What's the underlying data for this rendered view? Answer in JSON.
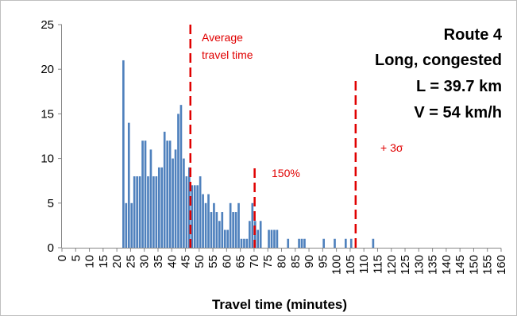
{
  "chart_data": {
    "type": "bar",
    "title": "",
    "xlabel": "Travel time (minutes)",
    "ylabel": "",
    "xlim": [
      0,
      160
    ],
    "ylim": [
      0,
      25
    ],
    "x_ticks": [
      0,
      5,
      10,
      15,
      20,
      25,
      30,
      35,
      40,
      45,
      50,
      55,
      60,
      65,
      70,
      75,
      80,
      85,
      90,
      95,
      100,
      105,
      110,
      115,
      120,
      125,
      130,
      135,
      140,
      145,
      150,
      155,
      160
    ],
    "y_ticks": [
      0,
      5,
      10,
      15,
      20,
      25
    ],
    "grid": false,
    "bar_color": "#4f81bd",
    "bin_width_minutes": 1,
    "bins": [
      {
        "x": 22,
        "y": 21
      },
      {
        "x": 23,
        "y": 5
      },
      {
        "x": 24,
        "y": 14
      },
      {
        "x": 25,
        "y": 5
      },
      {
        "x": 26,
        "y": 8
      },
      {
        "x": 27,
        "y": 8
      },
      {
        "x": 28,
        "y": 8
      },
      {
        "x": 29,
        "y": 12
      },
      {
        "x": 30,
        "y": 12
      },
      {
        "x": 31,
        "y": 8
      },
      {
        "x": 32,
        "y": 11
      },
      {
        "x": 33,
        "y": 8
      },
      {
        "x": 34,
        "y": 8
      },
      {
        "x": 35,
        "y": 9
      },
      {
        "x": 36,
        "y": 9
      },
      {
        "x": 37,
        "y": 13
      },
      {
        "x": 38,
        "y": 12
      },
      {
        "x": 39,
        "y": 12
      },
      {
        "x": 40,
        "y": 10
      },
      {
        "x": 41,
        "y": 11
      },
      {
        "x": 42,
        "y": 15
      },
      {
        "x": 43,
        "y": 16
      },
      {
        "x": 44,
        "y": 10
      },
      {
        "x": 45,
        "y": 8
      },
      {
        "x": 46,
        "y": 9
      },
      {
        "x": 47,
        "y": 7
      },
      {
        "x": 48,
        "y": 7
      },
      {
        "x": 49,
        "y": 7
      },
      {
        "x": 50,
        "y": 8
      },
      {
        "x": 51,
        "y": 6
      },
      {
        "x": 52,
        "y": 5
      },
      {
        "x": 53,
        "y": 6
      },
      {
        "x": 54,
        "y": 4
      },
      {
        "x": 55,
        "y": 5
      },
      {
        "x": 56,
        "y": 4
      },
      {
        "x": 57,
        "y": 3
      },
      {
        "x": 58,
        "y": 4
      },
      {
        "x": 59,
        "y": 2
      },
      {
        "x": 60,
        "y": 2
      },
      {
        "x": 61,
        "y": 5
      },
      {
        "x": 62,
        "y": 4
      },
      {
        "x": 63,
        "y": 4
      },
      {
        "x": 64,
        "y": 5
      },
      {
        "x": 65,
        "y": 1
      },
      {
        "x": 66,
        "y": 1
      },
      {
        "x": 67,
        "y": 1
      },
      {
        "x": 68,
        "y": 3
      },
      {
        "x": 69,
        "y": 5
      },
      {
        "x": 70,
        "y": 3
      },
      {
        "x": 71,
        "y": 2
      },
      {
        "x": 72,
        "y": 3
      },
      {
        "x": 75,
        "y": 2
      },
      {
        "x": 76,
        "y": 2
      },
      {
        "x": 77,
        "y": 2
      },
      {
        "x": 78,
        "y": 2
      },
      {
        "x": 82,
        "y": 1
      },
      {
        "x": 86,
        "y": 1
      },
      {
        "x": 87,
        "y": 1
      },
      {
        "x": 88,
        "y": 1
      },
      {
        "x": 95,
        "y": 1
      },
      {
        "x": 99,
        "y": 1
      },
      {
        "x": 103,
        "y": 1
      },
      {
        "x": 105,
        "y": 1
      },
      {
        "x": 113,
        "y": 1
      }
    ],
    "reference_lines": [
      {
        "x": 46.8,
        "label_lines": [
          "Average",
          "travel time"
        ],
        "color": "#e00000"
      },
      {
        "x": 70.2,
        "label_lines": [
          "150%"
        ],
        "color": "#e00000"
      },
      {
        "x": 107,
        "label_lines": [
          "+ 3σ"
        ],
        "color": "#e00000"
      }
    ]
  },
  "info_box": {
    "route": "Route 4",
    "description": "Long, congested",
    "length": "L = 39.7 km",
    "speed": "V = 54 km/h"
  }
}
